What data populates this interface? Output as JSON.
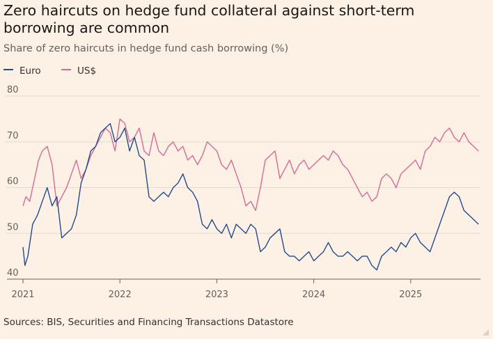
{
  "colors": {
    "background": "#fdf1e5",
    "euro": "#1f4b8e",
    "usd": "#d76a95",
    "grid": "#e6d9ce",
    "baseline": "#66605c"
  },
  "source": "Sources: BIS, Securities and Financing Transactions Datastore",
  "chart_data": {
    "type": "line",
    "title": "Zero haircuts on hedge fund collateral against short-term borrowing are common",
    "subtitle": "Share of zero haircuts in hedge fund cash borrowing (%)",
    "xlabel": "",
    "ylabel": "Share of zero haircuts in hedge fund cash borrowing (%)",
    "ylim": [
      40,
      80
    ],
    "xlim": [
      2021.0,
      2025.72
    ],
    "y_ticks": [
      40,
      50,
      60,
      70,
      80
    ],
    "x_ticks": [
      2021,
      2022,
      2023,
      2024,
      2025
    ],
    "x_tick_labels": [
      "2021",
      "2022",
      "2023",
      "2024",
      "2025"
    ],
    "grid": true,
    "legend_position": "top-left",
    "series": [
      {
        "name": "Euro",
        "x": [
          2021.0,
          2021.02,
          2021.05,
          2021.1,
          2021.15,
          2021.2,
          2021.25,
          2021.3,
          2021.35,
          2021.4,
          2021.45,
          2021.5,
          2021.55,
          2021.6,
          2021.65,
          2021.7,
          2021.75,
          2021.8,
          2021.85,
          2021.9,
          2021.95,
          2022.0,
          2022.05,
          2022.1,
          2022.15,
          2022.2,
          2022.25,
          2022.3,
          2022.35,
          2022.4,
          2022.45,
          2022.5,
          2022.55,
          2022.6,
          2022.65,
          2022.7,
          2022.75,
          2022.8,
          2022.85,
          2022.9,
          2022.95,
          2023.0,
          2023.05,
          2023.1,
          2023.15,
          2023.2,
          2023.25,
          2023.3,
          2023.35,
          2023.4,
          2023.45,
          2023.5,
          2023.55,
          2023.6,
          2023.65,
          2023.7,
          2023.75,
          2023.8,
          2023.85,
          2023.9,
          2023.95,
          2024.0,
          2024.05,
          2024.1,
          2024.15,
          2024.2,
          2024.25,
          2024.3,
          2024.35,
          2024.4,
          2024.45,
          2024.5,
          2024.55,
          2024.6,
          2024.65,
          2024.7,
          2024.75,
          2024.8,
          2024.85,
          2024.9,
          2024.95,
          2025.0,
          2025.05,
          2025.1,
          2025.15,
          2025.2,
          2025.25,
          2025.3,
          2025.35,
          2025.4,
          2025.45,
          2025.5,
          2025.55,
          2025.6,
          2025.65,
          2025.7
        ],
        "values": [
          47,
          43,
          45,
          52,
          54,
          57,
          60,
          56,
          58,
          49,
          50,
          51,
          54,
          61,
          64,
          68,
          69,
          72,
          73,
          74,
          70,
          71,
          73,
          68,
          71,
          67,
          66,
          58,
          57,
          58,
          59,
          58,
          60,
          61,
          63,
          60,
          59,
          57,
          52,
          51,
          53,
          51,
          50,
          52,
          49,
          52,
          51,
          50,
          52,
          51,
          46,
          47,
          49,
          50,
          51,
          46,
          45,
          45,
          44,
          45,
          46,
          44,
          45,
          46,
          48,
          46,
          45,
          45,
          46,
          45,
          44,
          45,
          45,
          43,
          42,
          45,
          46,
          47,
          46,
          48,
          47,
          49,
          50,
          48,
          47,
          46,
          49,
          52,
          55,
          58,
          59,
          58,
          55,
          54,
          53,
          52
        ]
      },
      {
        "name": "US$",
        "x": [
          2021.0,
          2021.03,
          2021.07,
          2021.12,
          2021.16,
          2021.2,
          2021.25,
          2021.3,
          2021.35,
          2021.4,
          2021.45,
          2021.5,
          2021.55,
          2021.6,
          2021.65,
          2021.7,
          2021.75,
          2021.8,
          2021.85,
          2021.9,
          2021.95,
          2022.0,
          2022.05,
          2022.1,
          2022.15,
          2022.2,
          2022.25,
          2022.3,
          2022.35,
          2022.4,
          2022.45,
          2022.5,
          2022.55,
          2022.6,
          2022.65,
          2022.7,
          2022.75,
          2022.8,
          2022.85,
          2022.9,
          2022.95,
          2023.0,
          2023.05,
          2023.1,
          2023.15,
          2023.2,
          2023.25,
          2023.3,
          2023.35,
          2023.4,
          2023.45,
          2023.5,
          2023.55,
          2023.6,
          2023.65,
          2023.7,
          2023.75,
          2023.8,
          2023.85,
          2023.9,
          2023.95,
          2024.0,
          2024.05,
          2024.1,
          2024.15,
          2024.2,
          2024.25,
          2024.3,
          2024.35,
          2024.4,
          2024.45,
          2024.5,
          2024.55,
          2024.6,
          2024.65,
          2024.7,
          2024.75,
          2024.8,
          2024.85,
          2024.9,
          2024.95,
          2025.0,
          2025.05,
          2025.1,
          2025.15,
          2025.2,
          2025.25,
          2025.3,
          2025.35,
          2025.4,
          2025.45,
          2025.5,
          2025.55,
          2025.6,
          2025.65,
          2025.7
        ],
        "values": [
          56,
          58,
          57,
          62,
          66,
          68,
          69,
          65,
          56,
          58,
          60,
          63,
          66,
          62,
          64,
          67,
          69,
          71,
          73,
          72,
          68,
          75,
          74,
          70,
          71,
          73,
          68,
          67,
          72,
          68,
          67,
          69,
          70,
          68,
          69,
          66,
          67,
          65,
          67,
          70,
          69,
          68,
          65,
          64,
          66,
          63,
          60,
          56,
          57,
          55,
          60,
          66,
          67,
          68,
          62,
          64,
          66,
          63,
          65,
          66,
          64,
          65,
          66,
          67,
          66,
          68,
          67,
          65,
          64,
          62,
          60,
          58,
          59,
          57,
          58,
          62,
          63,
          62,
          60,
          63,
          64,
          65,
          66,
          64,
          68,
          69,
          71,
          70,
          72,
          73,
          71,
          70,
          72,
          70,
          69,
          68
        ]
      }
    ]
  }
}
